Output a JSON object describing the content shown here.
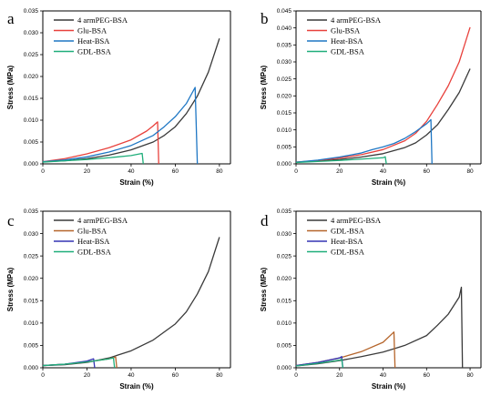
{
  "colors": {
    "black": "#3a3a3a",
    "red": "#e8413c",
    "blue": "#1f77c4",
    "green": "#1fae7a",
    "brown": "#b5652b",
    "navy": "#3333b3"
  },
  "chart_data": [
    {
      "type": "line",
      "panel_label": "a",
      "xlabel": "Strain (%)",
      "ylabel": "Stress (MPa)",
      "xlim": [
        0,
        85
      ],
      "ylim": [
        0,
        0.035
      ],
      "xticks": [
        "0",
        "20",
        "40",
        "60",
        "80"
      ],
      "yticks": [
        "0.000",
        "0.005",
        "0.010",
        "0.015",
        "0.020",
        "0.025",
        "0.030",
        "0.035"
      ],
      "legend_position": "top-left",
      "series": [
        {
          "name": "4 armPEG-BSA",
          "color": "#3a3a3a",
          "x": [
            0,
            10,
            20,
            30,
            40,
            50,
            55,
            60,
            65,
            70,
            75,
            80
          ],
          "y": [
            0.0005,
            0.0007,
            0.0012,
            0.002,
            0.0032,
            0.005,
            0.0065,
            0.0085,
            0.0115,
            0.0155,
            0.021,
            0.0287
          ]
        },
        {
          "name": "Glu-BSA",
          "color": "#e8413c",
          "x": [
            0,
            10,
            20,
            30,
            40,
            47,
            50,
            52,
            52.5
          ],
          "y": [
            0.0005,
            0.0012,
            0.0023,
            0.0037,
            0.0055,
            0.0075,
            0.0087,
            0.0096,
            0.0
          ]
        },
        {
          "name": "Heat-BSA",
          "color": "#1f77c4",
          "x": [
            0,
            10,
            20,
            30,
            40,
            50,
            55,
            60,
            65,
            69,
            70
          ],
          "y": [
            0.0005,
            0.0009,
            0.0016,
            0.0027,
            0.0042,
            0.0065,
            0.0085,
            0.0108,
            0.0138,
            0.0175,
            0.0
          ]
        },
        {
          "name": "GDL-BSA",
          "color": "#1fae7a",
          "x": [
            0,
            10,
            20,
            30,
            40,
            45,
            45.5
          ],
          "y": [
            0.0004,
            0.0007,
            0.001,
            0.0014,
            0.0019,
            0.0024,
            0.0
          ]
        }
      ]
    },
    {
      "type": "line",
      "panel_label": "b",
      "xlabel": "Strain (%)",
      "ylabel": "Stress (MPa)",
      "xlim": [
        0,
        85
      ],
      "ylim": [
        0,
        0.045
      ],
      "xticks": [
        "0",
        "20",
        "40",
        "60",
        "80"
      ],
      "yticks": [
        "0.000",
        "0.005",
        "0.010",
        "0.015",
        "0.020",
        "0.025",
        "0.030",
        "0.035",
        "0.040",
        "0.045"
      ],
      "legend_position": "top-left",
      "series": [
        {
          "name": "4 armPEG-BSA",
          "color": "#3a3a3a",
          "x": [
            0,
            10,
            20,
            30,
            40,
            50,
            55,
            60,
            65,
            70,
            75,
            80
          ],
          "y": [
            0.0005,
            0.0008,
            0.0013,
            0.002,
            0.003,
            0.0048,
            0.0062,
            0.0085,
            0.0115,
            0.016,
            0.021,
            0.028
          ]
        },
        {
          "name": "Glu-BSA",
          "color": "#e8413c",
          "x": [
            0,
            10,
            20,
            30,
            40,
            50,
            55,
            60,
            65,
            70,
            75,
            80
          ],
          "y": [
            0.0005,
            0.001,
            0.0017,
            0.0027,
            0.0042,
            0.0068,
            0.009,
            0.0125,
            0.0175,
            0.023,
            0.03,
            0.0402
          ]
        },
        {
          "name": "Heat-BSA",
          "color": "#1f77c4",
          "x": [
            0,
            10,
            20,
            30,
            35,
            40,
            45,
            50,
            55,
            60,
            62,
            62.5
          ],
          "y": [
            0.0005,
            0.0011,
            0.002,
            0.0032,
            0.0042,
            0.005,
            0.006,
            0.0075,
            0.0095,
            0.0118,
            0.013,
            0.0
          ]
        },
        {
          "name": "GDL-BSA",
          "color": "#1fae7a",
          "x": [
            0,
            10,
            20,
            30,
            40,
            41,
            41.5
          ],
          "y": [
            0.0004,
            0.0007,
            0.001,
            0.0014,
            0.0018,
            0.0021,
            0.0
          ]
        }
      ]
    },
    {
      "type": "line",
      "panel_label": "c",
      "xlabel": "Strain (%)",
      "ylabel": "Stress (MPa)",
      "xlim": [
        0,
        85
      ],
      "ylim": [
        0,
        0.035
      ],
      "xticks": [
        "0",
        "20",
        "40",
        "60",
        "80"
      ],
      "yticks": [
        "0.000",
        "0.005",
        "0.010",
        "0.015",
        "0.020",
        "0.025",
        "0.030",
        "0.035"
      ],
      "legend_position": "top-left",
      "series": [
        {
          "name": "4 armPEG-BSA",
          "color": "#3a3a3a",
          "x": [
            0,
            10,
            20,
            30,
            40,
            50,
            60,
            65,
            70,
            75,
            80
          ],
          "y": [
            0.0005,
            0.0007,
            0.0012,
            0.0022,
            0.0038,
            0.0062,
            0.0098,
            0.0125,
            0.0165,
            0.0215,
            0.0292
          ]
        },
        {
          "name": "Glu-BSA",
          "color": "#b5652b",
          "x": [
            0,
            10,
            20,
            30,
            33,
            33.5
          ],
          "y": [
            0.0005,
            0.0008,
            0.0013,
            0.002,
            0.0024,
            0.0
          ]
        },
        {
          "name": "Heat-BSA",
          "color": "#3333b3",
          "x": [
            0,
            10,
            20,
            23,
            23.5
          ],
          "y": [
            0.0005,
            0.0008,
            0.0015,
            0.002,
            0.0
          ]
        },
        {
          "name": "GDL-BSA",
          "color": "#1fae7a",
          "x": [
            0,
            10,
            20,
            30,
            32,
            32.5
          ],
          "y": [
            0.0005,
            0.0008,
            0.0013,
            0.002,
            0.0022,
            0.0
          ]
        }
      ]
    },
    {
      "type": "line",
      "panel_label": "d",
      "xlabel": "Strain (%)",
      "ylabel": "Stress (MPa)",
      "xlim": [
        0,
        85
      ],
      "ylim": [
        0,
        0.035
      ],
      "xticks": [
        "0",
        "20",
        "40",
        "60",
        "80"
      ],
      "yticks": [
        "0.000",
        "0.005",
        "0.010",
        "0.015",
        "0.020",
        "0.025",
        "0.030",
        "0.035"
      ],
      "legend_position": "top-left",
      "series": [
        {
          "name": "4 armPEG-BSA",
          "color": "#3a3a3a",
          "x": [
            0,
            10,
            20,
            30,
            40,
            50,
            60,
            65,
            70,
            75,
            76,
            76.5
          ],
          "y": [
            0.0004,
            0.0009,
            0.0016,
            0.0025,
            0.0035,
            0.005,
            0.0072,
            0.0095,
            0.012,
            0.0158,
            0.018,
            0.0
          ]
        },
        {
          "name": "GDL-BSA",
          "color": "#b5652b",
          "x": [
            0,
            10,
            20,
            30,
            40,
            45,
            45.5
          ],
          "y": [
            0.0005,
            0.0012,
            0.0022,
            0.0036,
            0.0057,
            0.008,
            0.0
          ]
        },
        {
          "name": "Heat-BSA",
          "color": "#3333b3",
          "x": [
            0,
            10,
            20,
            21,
            21.5
          ],
          "y": [
            0.0005,
            0.0012,
            0.0022,
            0.0025,
            0.0
          ]
        },
        {
          "name": "GDL-BSA",
          "color": "#1fae7a",
          "x": [
            0,
            10,
            20,
            21,
            21.5
          ],
          "y": [
            0.0004,
            0.001,
            0.0017,
            0.0019,
            0.0
          ]
        }
      ]
    }
  ]
}
